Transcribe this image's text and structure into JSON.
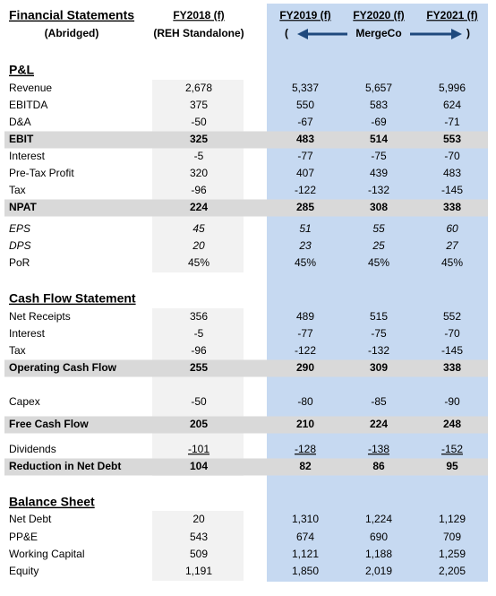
{
  "header": {
    "title": "Financial Statements",
    "subtitle": "(Abridged)",
    "columns": [
      {
        "label": "FY2018 (f)",
        "sub": "(REH Standalone)"
      },
      {
        "label": "FY2019 (f)"
      },
      {
        "label": "FY2020 (f)"
      },
      {
        "label": "FY2021 (f)"
      }
    ],
    "merge_open": "(",
    "merge_label": "MergeCo",
    "merge_close": ")"
  },
  "sections": [
    {
      "title": "P&L",
      "rows": [
        {
          "label": "Revenue",
          "values": [
            "2,678",
            "5,337",
            "5,657",
            "5,996"
          ]
        },
        {
          "label": "EBITDA",
          "values": [
            "375",
            "550",
            "583",
            "624"
          ]
        },
        {
          "label": "D&A",
          "values": [
            "-50",
            "-67",
            "-69",
            "-71"
          ]
        },
        {
          "label": "EBIT",
          "values": [
            "325",
            "483",
            "514",
            "553"
          ],
          "style": "total"
        },
        {
          "label": "Interest",
          "values": [
            "-5",
            "-77",
            "-75",
            "-70"
          ]
        },
        {
          "label": "Pre-Tax Profit",
          "values": [
            "320",
            "407",
            "439",
            "483"
          ]
        },
        {
          "label": "Tax",
          "values": [
            "-96",
            "-122",
            "-132",
            "-145"
          ]
        },
        {
          "label": "NPAT",
          "values": [
            "224",
            "285",
            "308",
            "338"
          ],
          "style": "total"
        },
        {
          "label": "EPS",
          "values": [
            "45",
            "51",
            "55",
            "60"
          ],
          "style": "italic"
        },
        {
          "label": "DPS",
          "values": [
            "20",
            "23",
            "25",
            "27"
          ],
          "style": "italic"
        },
        {
          "label": "PoR",
          "values": [
            "45%",
            "45%",
            "45%",
            "45%"
          ]
        }
      ]
    },
    {
      "title": "Cash Flow Statement",
      "rows": [
        {
          "label": "Net Receipts",
          "values": [
            "356",
            "489",
            "515",
            "552"
          ]
        },
        {
          "label": "Interest",
          "values": [
            "-5",
            "-77",
            "-75",
            "-70"
          ]
        },
        {
          "label": "Tax",
          "values": [
            "-96",
            "-122",
            "-132",
            "-145"
          ]
        },
        {
          "label": "Operating Cash Flow",
          "values": [
            "255",
            "290",
            "309",
            "338"
          ],
          "style": "total"
        },
        {
          "label": "Capex",
          "values": [
            "-50",
            "-80",
            "-85",
            "-90"
          ]
        },
        {
          "label": "Free Cash Flow",
          "values": [
            "205",
            "210",
            "224",
            "248"
          ],
          "style": "total"
        },
        {
          "label": "Dividends",
          "values": [
            "-101",
            "-128",
            "-138",
            "-152"
          ],
          "style": "underline"
        },
        {
          "label": "Reduction in Net Debt",
          "values": [
            "104",
            "82",
            "86",
            "95"
          ],
          "style": "total"
        }
      ]
    },
    {
      "title": "Balance Sheet",
      "rows": [
        {
          "label": "Net Debt",
          "values": [
            "20",
            "1,310",
            "1,224",
            "1,129"
          ]
        },
        {
          "label": "PP&E",
          "values": [
            "543",
            "674",
            "690",
            "709"
          ]
        },
        {
          "label": "Working Capital",
          "values": [
            "509",
            "1,121",
            "1,188",
            "1,259"
          ]
        },
        {
          "label": "Equity",
          "values": [
            "1,191",
            "1,850",
            "2,019",
            "2,205"
          ]
        }
      ]
    }
  ]
}
